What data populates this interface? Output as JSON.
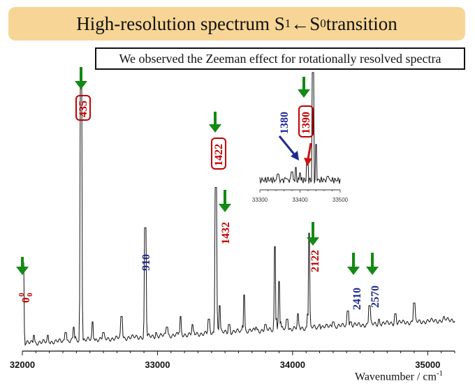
{
  "header": {
    "title_main": "High-resolution spectrum S",
    "title_sub1": "1",
    "title_arrow": " ←S",
    "title_sub0": "0",
    "title_end": " transition"
  },
  "subtitle": "We observed the Zeeman effect for rotationally  resolved spectra",
  "chart_data": {
    "type": "line",
    "title": "High-resolution spectrum S1 ←S0 transition",
    "xlabel": "Wavenumber / cm-1",
    "xlabel_parts": {
      "text": "Wavenumber / cm",
      "sup": "-1"
    },
    "xlim": [
      32000,
      35200
    ],
    "xticks": [
      32000,
      33000,
      34000,
      35000
    ],
    "ylim": [
      0,
      1
    ],
    "grid": false,
    "line_color": "#111111",
    "series": [
      {
        "peaks": [
          {
            "x": 32005,
            "y": 0.29
          },
          {
            "x": 32085,
            "y": 0.02
          },
          {
            "x": 32190,
            "y": 0.02
          },
          {
            "x": 32320,
            "y": 0.03
          },
          {
            "x": 32380,
            "y": 0.05
          },
          {
            "x": 32435,
            "y": 0.97
          },
          {
            "x": 32520,
            "y": 0.07
          },
          {
            "x": 32600,
            "y": 0.03
          },
          {
            "x": 32735,
            "y": 0.09
          },
          {
            "x": 32910,
            "y": 0.42
          },
          {
            "x": 32990,
            "y": 0.03
          },
          {
            "x": 33070,
            "y": 0.05
          },
          {
            "x": 33170,
            "y": 0.09
          },
          {
            "x": 33260,
            "y": 0.06
          },
          {
            "x": 33380,
            "y": 0.08
          },
          {
            "x": 33432,
            "y": 0.57
          },
          {
            "x": 33460,
            "y": 0.13
          },
          {
            "x": 33530,
            "y": 0.06
          },
          {
            "x": 33640,
            "y": 0.17
          },
          {
            "x": 33730,
            "y": 0.05
          },
          {
            "x": 33800,
            "y": 0.06
          },
          {
            "x": 33870,
            "y": 0.35
          },
          {
            "x": 33900,
            "y": 0.22
          },
          {
            "x": 33960,
            "y": 0.08
          },
          {
            "x": 34040,
            "y": 0.1
          },
          {
            "x": 34122,
            "y": 0.4
          },
          {
            "x": 34200,
            "y": 0.06
          },
          {
            "x": 34300,
            "y": 0.07
          },
          {
            "x": 34410,
            "y": 0.11
          },
          {
            "x": 34430,
            "y": 0.07
          },
          {
            "x": 34570,
            "y": 0.13
          },
          {
            "x": 34640,
            "y": 0.08
          },
          {
            "x": 34760,
            "y": 0.1
          },
          {
            "x": 34900,
            "y": 0.14
          },
          {
            "x": 35000,
            "y": 0.07
          },
          {
            "x": 35120,
            "y": 0.09
          }
        ]
      }
    ],
    "annotations": [
      {
        "label": "0",
        "sub": "0",
        "sup": "0",
        "x": 32000,
        "color": "#c00000",
        "boxed": false
      },
      {
        "label": "435",
        "x": 32435,
        "color": "#c00000",
        "boxed": true
      },
      {
        "label": "910",
        "x": 32910,
        "color": "#1f2a90",
        "boxed": false
      },
      {
        "label": "1432",
        "x": 33432,
        "color": "#c00000",
        "boxed": false
      },
      {
        "label": "1422",
        "x": 33422,
        "color": "#c00000",
        "boxed": true
      },
      {
        "label": "2122",
        "x": 34122,
        "color": "#c00000",
        "boxed": false
      },
      {
        "label": "2410",
        "x": 34410,
        "color": "#1f2a90",
        "boxed": false
      },
      {
        "label": "2570",
        "x": 34570,
        "color": "#1f2a90",
        "boxed": false
      },
      {
        "label": "1380",
        "x": 33380,
        "color": "#1f2a90",
        "boxed": false
      },
      {
        "label": "1390",
        "x": 33390,
        "color": "#c00000",
        "boxed": true
      }
    ],
    "inset": {
      "xlim": [
        33300,
        33500
      ],
      "xticks": [
        33300,
        33400,
        33500
      ],
      "peaks": [
        {
          "x": 33320,
          "y": 0.05
        },
        {
          "x": 33345,
          "y": 0.08
        },
        {
          "x": 33365,
          "y": 0.04
        },
        {
          "x": 33380,
          "y": 0.1
        },
        {
          "x": 33390,
          "y": 0.14
        },
        {
          "x": 33400,
          "y": 0.09
        },
        {
          "x": 33418,
          "y": 0.22
        },
        {
          "x": 33432,
          "y": 1.0
        },
        {
          "x": 33440,
          "y": 0.35
        },
        {
          "x": 33470,
          "y": 0.06
        }
      ]
    }
  },
  "colors": {
    "arrow_green": "#138a13",
    "label_red": "#c00000",
    "label_blue": "#1f2a90",
    "title_bg": "#f7d596"
  }
}
